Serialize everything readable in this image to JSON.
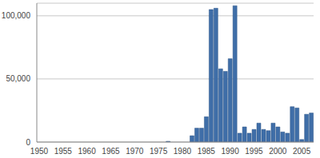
{
  "chart_data": {
    "type": "bar",
    "categories": [
      "1950",
      null,
      null,
      null,
      null,
      "1955",
      null,
      null,
      null,
      null,
      "1960",
      null,
      null,
      null,
      null,
      "1965",
      null,
      null,
      null,
      null,
      "1970",
      null,
      null,
      null,
      null,
      "1975",
      null,
      null,
      null,
      null,
      "1980",
      null,
      null,
      null,
      null,
      "1985",
      null,
      null,
      null,
      null,
      "1990",
      null,
      null,
      null,
      null,
      "1995",
      null,
      null,
      null,
      null,
      "2000",
      null,
      null,
      null,
      null,
      "2005",
      null,
      null
    ],
    "values": [
      0,
      0,
      0,
      0,
      0,
      0,
      0,
      0,
      0,
      0,
      0,
      0,
      0,
      0,
      0,
      0,
      0,
      0,
      0,
      0,
      0,
      0,
      0,
      0,
      0,
      0,
      0,
      600,
      0,
      0,
      0,
      0,
      5000,
      11000,
      11000,
      20000,
      105000,
      106000,
      58000,
      56000,
      66000,
      108000,
      7000,
      12000,
      7000,
      10000,
      15000,
      10000,
      9000,
      15000,
      12000,
      8000,
      7000,
      28000,
      27000,
      2000,
      22000,
      23000
    ],
    "color": "#3f6ea8",
    "ylim": [
      0,
      110000
    ],
    "yticks": [
      0,
      {
        "value": 50000,
        "label": "50,000"
      },
      {
        "value": 100000,
        "label": "100,000"
      }
    ],
    "grid": true
  }
}
